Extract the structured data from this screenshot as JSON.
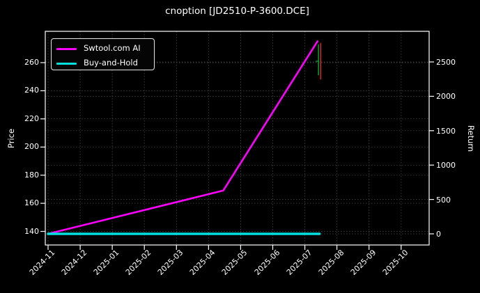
{
  "chart_data": {
    "type": "line",
    "title": "cnoption [JD2510-P-3600.DCE]",
    "left_axis": {
      "label": "Price",
      "ticks": [
        140,
        160,
        180,
        200,
        220,
        240,
        260
      ]
    },
    "right_axis": {
      "label": "Return",
      "ticks": [
        0,
        500,
        1000,
        1500,
        2000,
        2500
      ]
    },
    "x_tick_labels": [
      "2024-11",
      "2024-12",
      "2025-01",
      "2025-02",
      "2025-03",
      "2025-04",
      "2025-05",
      "2025-06",
      "2025-07",
      "2025-08",
      "2025-09",
      "2025-10"
    ],
    "grid": {
      "visible": true,
      "style": "dotted",
      "color": "#3c3c3c"
    },
    "series": [
      {
        "name": "Swtool.com AI",
        "color": "#ff00ff",
        "axis": "return",
        "points": [
          [
            "2024-11-01",
            0
          ],
          [
            "2025-04-15",
            630
          ],
          [
            "2025-07-13",
            2800
          ]
        ]
      },
      {
        "name": "Buy-and-Hold",
        "color": "#00dede",
        "axis": "return",
        "points": [
          [
            "2024-11-01",
            0
          ],
          [
            "2025-07-15",
            0
          ]
        ]
      }
    ],
    "end_price_bars": [
      {
        "kind": "up",
        "color": "#00992a",
        "date": "2025-07-14",
        "high": 273,
        "low": 251,
        "open": 261
      },
      {
        "kind": "down",
        "color": "#d42222",
        "date": "2025-07-16",
        "high": 274,
        "low": 248
      }
    ],
    "colors": {
      "background": "#000000",
      "foreground": "#ffffff",
      "spine": "#ffffff"
    }
  }
}
